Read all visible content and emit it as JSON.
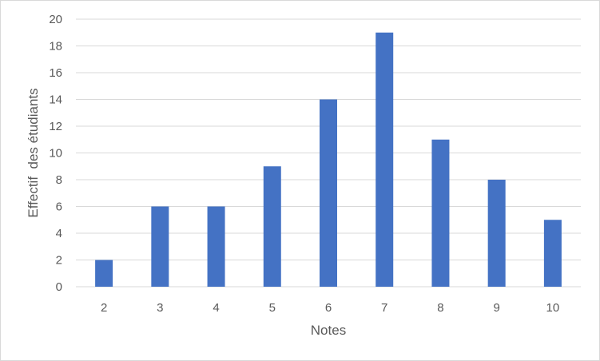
{
  "chart_data": {
    "type": "bar",
    "categories": [
      "2",
      "3",
      "4",
      "5",
      "6",
      "7",
      "8",
      "9",
      "10"
    ],
    "values": [
      2,
      6,
      6,
      9,
      14,
      19,
      11,
      8,
      5
    ],
    "xlabel": "Notes",
    "ylabel": "Effectif  des étudiants",
    "ylim": [
      0,
      20
    ],
    "yticks": [
      0,
      2,
      4,
      6,
      8,
      10,
      12,
      14,
      16,
      18,
      20
    ],
    "grid": true,
    "legend": "none",
    "bar_color": "#4472C4",
    "grid_color": "#d9d9d9"
  }
}
